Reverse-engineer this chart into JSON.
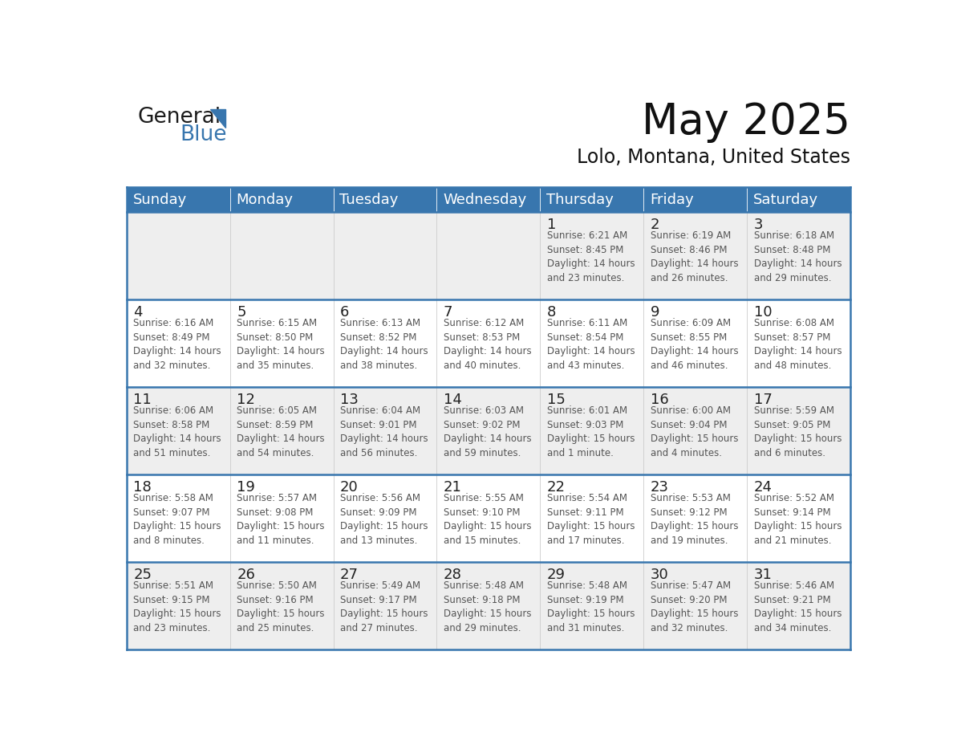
{
  "title": "May 2025",
  "subtitle": "Lolo, Montana, United States",
  "header_color": "#3876ae",
  "header_text_color": "#ffffff",
  "cell_bg_row1": "#eeeeee",
  "cell_bg_row2": "#ffffff",
  "border_color": "#3876ae",
  "cell_divider_color": "#cccccc",
  "day_names": [
    "Sunday",
    "Monday",
    "Tuesday",
    "Wednesday",
    "Thursday",
    "Friday",
    "Saturday"
  ],
  "text_color": "#333333",
  "day_num_color": "#222222",
  "info_color": "#555555",
  "weeks": [
    [
      {
        "day": "",
        "info": ""
      },
      {
        "day": "",
        "info": ""
      },
      {
        "day": "",
        "info": ""
      },
      {
        "day": "",
        "info": ""
      },
      {
        "day": "1",
        "info": "Sunrise: 6:21 AM\nSunset: 8:45 PM\nDaylight: 14 hours\nand 23 minutes."
      },
      {
        "day": "2",
        "info": "Sunrise: 6:19 AM\nSunset: 8:46 PM\nDaylight: 14 hours\nand 26 minutes."
      },
      {
        "day": "3",
        "info": "Sunrise: 6:18 AM\nSunset: 8:48 PM\nDaylight: 14 hours\nand 29 minutes."
      }
    ],
    [
      {
        "day": "4",
        "info": "Sunrise: 6:16 AM\nSunset: 8:49 PM\nDaylight: 14 hours\nand 32 minutes."
      },
      {
        "day": "5",
        "info": "Sunrise: 6:15 AM\nSunset: 8:50 PM\nDaylight: 14 hours\nand 35 minutes."
      },
      {
        "day": "6",
        "info": "Sunrise: 6:13 AM\nSunset: 8:52 PM\nDaylight: 14 hours\nand 38 minutes."
      },
      {
        "day": "7",
        "info": "Sunrise: 6:12 AM\nSunset: 8:53 PM\nDaylight: 14 hours\nand 40 minutes."
      },
      {
        "day": "8",
        "info": "Sunrise: 6:11 AM\nSunset: 8:54 PM\nDaylight: 14 hours\nand 43 minutes."
      },
      {
        "day": "9",
        "info": "Sunrise: 6:09 AM\nSunset: 8:55 PM\nDaylight: 14 hours\nand 46 minutes."
      },
      {
        "day": "10",
        "info": "Sunrise: 6:08 AM\nSunset: 8:57 PM\nDaylight: 14 hours\nand 48 minutes."
      }
    ],
    [
      {
        "day": "11",
        "info": "Sunrise: 6:06 AM\nSunset: 8:58 PM\nDaylight: 14 hours\nand 51 minutes."
      },
      {
        "day": "12",
        "info": "Sunrise: 6:05 AM\nSunset: 8:59 PM\nDaylight: 14 hours\nand 54 minutes."
      },
      {
        "day": "13",
        "info": "Sunrise: 6:04 AM\nSunset: 9:01 PM\nDaylight: 14 hours\nand 56 minutes."
      },
      {
        "day": "14",
        "info": "Sunrise: 6:03 AM\nSunset: 9:02 PM\nDaylight: 14 hours\nand 59 minutes."
      },
      {
        "day": "15",
        "info": "Sunrise: 6:01 AM\nSunset: 9:03 PM\nDaylight: 15 hours\nand 1 minute."
      },
      {
        "day": "16",
        "info": "Sunrise: 6:00 AM\nSunset: 9:04 PM\nDaylight: 15 hours\nand 4 minutes."
      },
      {
        "day": "17",
        "info": "Sunrise: 5:59 AM\nSunset: 9:05 PM\nDaylight: 15 hours\nand 6 minutes."
      }
    ],
    [
      {
        "day": "18",
        "info": "Sunrise: 5:58 AM\nSunset: 9:07 PM\nDaylight: 15 hours\nand 8 minutes."
      },
      {
        "day": "19",
        "info": "Sunrise: 5:57 AM\nSunset: 9:08 PM\nDaylight: 15 hours\nand 11 minutes."
      },
      {
        "day": "20",
        "info": "Sunrise: 5:56 AM\nSunset: 9:09 PM\nDaylight: 15 hours\nand 13 minutes."
      },
      {
        "day": "21",
        "info": "Sunrise: 5:55 AM\nSunset: 9:10 PM\nDaylight: 15 hours\nand 15 minutes."
      },
      {
        "day": "22",
        "info": "Sunrise: 5:54 AM\nSunset: 9:11 PM\nDaylight: 15 hours\nand 17 minutes."
      },
      {
        "day": "23",
        "info": "Sunrise: 5:53 AM\nSunset: 9:12 PM\nDaylight: 15 hours\nand 19 minutes."
      },
      {
        "day": "24",
        "info": "Sunrise: 5:52 AM\nSunset: 9:14 PM\nDaylight: 15 hours\nand 21 minutes."
      }
    ],
    [
      {
        "day": "25",
        "info": "Sunrise: 5:51 AM\nSunset: 9:15 PM\nDaylight: 15 hours\nand 23 minutes."
      },
      {
        "day": "26",
        "info": "Sunrise: 5:50 AM\nSunset: 9:16 PM\nDaylight: 15 hours\nand 25 minutes."
      },
      {
        "day": "27",
        "info": "Sunrise: 5:49 AM\nSunset: 9:17 PM\nDaylight: 15 hours\nand 27 minutes."
      },
      {
        "day": "28",
        "info": "Sunrise: 5:48 AM\nSunset: 9:18 PM\nDaylight: 15 hours\nand 29 minutes."
      },
      {
        "day": "29",
        "info": "Sunrise: 5:48 AM\nSunset: 9:19 PM\nDaylight: 15 hours\nand 31 minutes."
      },
      {
        "day": "30",
        "info": "Sunrise: 5:47 AM\nSunset: 9:20 PM\nDaylight: 15 hours\nand 32 minutes."
      },
      {
        "day": "31",
        "info": "Sunrise: 5:46 AM\nSunset: 9:21 PM\nDaylight: 15 hours\nand 34 minutes."
      }
    ]
  ],
  "logo_color_general": "#1a1a1a",
  "logo_color_blue": "#3876ae",
  "logo_triangle_color": "#3876ae",
  "title_fontsize": 38,
  "subtitle_fontsize": 17,
  "header_fontsize": 13,
  "day_num_fontsize": 13,
  "info_fontsize": 8.5
}
